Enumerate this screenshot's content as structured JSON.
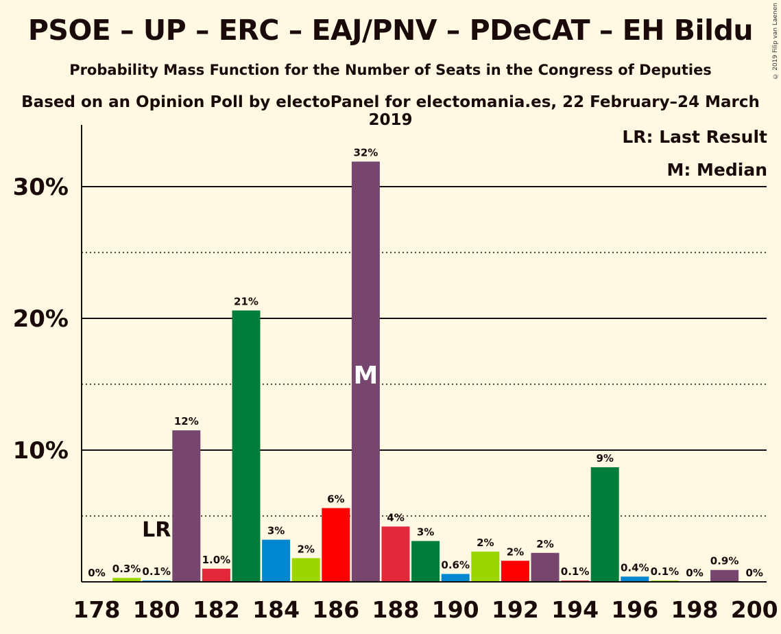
{
  "title": "PSOE – UP – ERC – EAJ/PNV – PDeCAT – EH Bildu",
  "subtitle": "Probability Mass Function for the Number of Seats in the Congress of Deputies",
  "source": "Based on an Opinion Poll by electoPanel for electomania.es, 22 February–24 March 2019",
  "copyright": "© 2019 Filip van Laenen",
  "legend": {
    "last_result": "LR: Last Result",
    "median": "M: Median"
  },
  "chart_data": {
    "type": "bar",
    "x": [
      178,
      179,
      180,
      181,
      182,
      183,
      184,
      185,
      186,
      187,
      188,
      189,
      190,
      191,
      192,
      193,
      194,
      195,
      196,
      197,
      198,
      199,
      200
    ],
    "values": [
      0,
      0.3,
      0.1,
      11.5,
      1.0,
      20.6,
      3.2,
      1.8,
      5.6,
      31.9,
      4.2,
      3.1,
      0.6,
      2.3,
      1.6,
      2.2,
      0.1,
      8.7,
      0.4,
      0.1,
      0,
      0.9,
      0
    ],
    "value_labels": [
      "0%",
      "0.3%",
      "0.1%",
      "12%",
      "1.0%",
      "21%",
      "3%",
      "2%",
      "6%",
      "32%",
      "4%",
      "3%",
      "0.6%",
      "2%",
      "2%",
      "2%",
      "0.1%",
      "9%",
      "0.4%",
      "0.1%",
      "0%",
      "0.9%",
      "0%"
    ],
    "bar_colors": [
      "#76466f",
      "#9bd600",
      "#0087d0",
      "#76466f",
      "#e3283c",
      "#007d3a",
      "#0087d0",
      "#9bd600",
      "#ff0000",
      "#76466f",
      "#e3283c",
      "#007d3a",
      "#0087d0",
      "#9bd600",
      "#ff0000",
      "#76466f",
      "#e3283c",
      "#007d3a",
      "#0087d0",
      "#9bd600",
      "#ff0000",
      "#76466f",
      "#e3283c"
    ],
    "x_tick_labels": [
      "178",
      "180",
      "182",
      "184",
      "186",
      "188",
      "190",
      "192",
      "194",
      "196",
      "198",
      "200"
    ],
    "y_tick_labels": [
      "10%",
      "20%",
      "30%"
    ],
    "ylim": [
      0,
      34
    ],
    "grid": "solid at 10% steps, dotted at 5% steps",
    "last_result_seat": 180,
    "last_result_label": "LR",
    "median_seat": 187,
    "median_label": "M"
  }
}
